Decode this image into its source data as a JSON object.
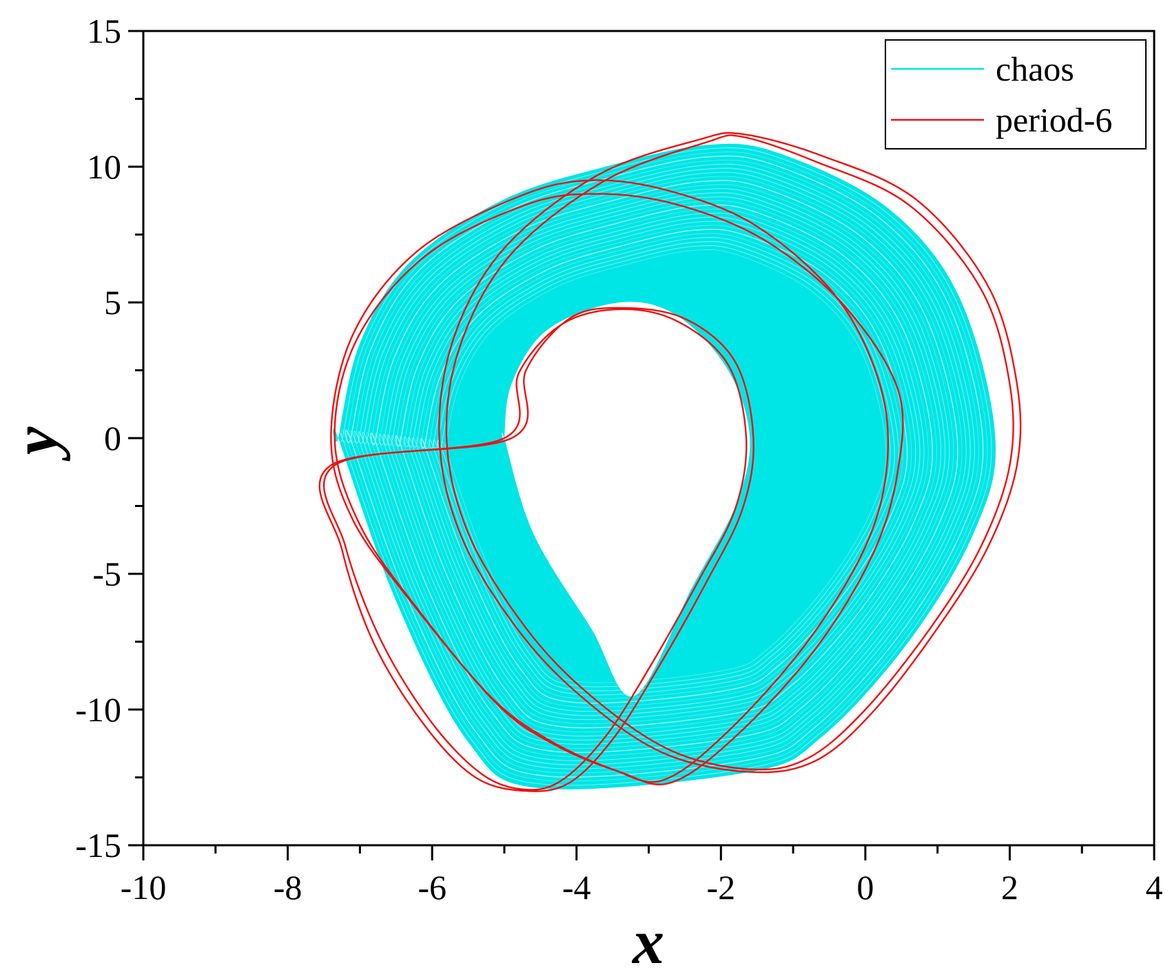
{
  "chart_data": {
    "type": "line",
    "title": "",
    "xlabel": "x",
    "ylabel": "y",
    "xlim": [
      -10,
      4
    ],
    "ylim": [
      -15,
      15
    ],
    "x_ticks": [
      -10,
      -8,
      -6,
      -4,
      -2,
      0,
      2,
      4
    ],
    "y_ticks": [
      15,
      10,
      5,
      0,
      -5,
      -10,
      -15
    ],
    "x_tick_labels": [
      "-10",
      "-8",
      "-6",
      "-4",
      "-2",
      "0",
      "2",
      "4"
    ],
    "y_tick_labels": [
      "15",
      "10",
      "5",
      "0",
      "-5",
      "-10",
      "-15"
    ],
    "grid": false,
    "legend_position": "top-right",
    "series": [
      {
        "name": "chaos",
        "color": "#00e5e5",
        "kind": "filled-band",
        "outer_boundary": [
          [
            -7.3,
            0
          ],
          [
            -7.0,
            3.5
          ],
          [
            -6.3,
            6.5
          ],
          [
            -5.0,
            8.8
          ],
          [
            -3.6,
            10.0
          ],
          [
            -2.2,
            10.8
          ],
          [
            -1.2,
            10.5
          ],
          [
            0.3,
            8.5
          ],
          [
            1.3,
            5.2
          ],
          [
            1.8,
            0
          ],
          [
            1.5,
            -3.5
          ],
          [
            0.6,
            -7.5
          ],
          [
            -0.6,
            -11.0
          ],
          [
            -1.6,
            -12.3
          ],
          [
            -4.5,
            -12.9
          ],
          [
            -5.5,
            -11.2
          ],
          [
            -6.5,
            -6.0
          ],
          [
            -7.3,
            0
          ]
        ],
        "inner_boundary": [
          [
            -5.0,
            0
          ],
          [
            -4.9,
            2.0
          ],
          [
            -4.4,
            4.0
          ],
          [
            -3.4,
            5.0
          ],
          [
            -2.6,
            4.5
          ],
          [
            -1.9,
            2.5
          ],
          [
            -1.6,
            0
          ],
          [
            -1.8,
            -2.5
          ],
          [
            -2.4,
            -5.5
          ],
          [
            -3.2,
            -9.5
          ],
          [
            -3.8,
            -7.0
          ],
          [
            -4.6,
            -3.5
          ],
          [
            -5.0,
            0
          ]
        ]
      },
      {
        "name": "period-6",
        "color": "#ee1111",
        "kind": "closed-loops",
        "loops": [
          [
            [
              -7.4,
              0
            ],
            [
              -7.1,
              3.8
            ],
            [
              -6.2,
              6.9
            ],
            [
              -4.8,
              8.9
            ],
            [
              -3.8,
              9.5
            ],
            [
              -2.7,
              9.1
            ],
            [
              -1.5,
              7.8
            ],
            [
              -0.4,
              5.2
            ],
            [
              0.2,
              2.0
            ],
            [
              0.3,
              -1.0
            ],
            [
              0.0,
              -4.0
            ],
            [
              -0.8,
              -7.5
            ],
            [
              -1.9,
              -10.8
            ],
            [
              -2.8,
              -12.6
            ],
            [
              -3.5,
              -12.2
            ],
            [
              -4.4,
              -11.1
            ],
            [
              -5.2,
              -9.5
            ],
            [
              -6.3,
              -6.0
            ],
            [
              -7.1,
              -3.0
            ]
          ],
          [
            [
              -7.35,
              0
            ],
            [
              -7.05,
              3.6
            ],
            [
              -6.1,
              6.7
            ],
            [
              -4.7,
              8.6
            ],
            [
              -3.7,
              9.0
            ],
            [
              -2.6,
              8.6
            ],
            [
              -1.4,
              7.3
            ],
            [
              -0.3,
              4.9
            ],
            [
              0.45,
              1.8
            ],
            [
              0.45,
              -1.2
            ],
            [
              0.1,
              -4.3
            ],
            [
              -0.7,
              -7.8
            ],
            [
              -1.8,
              -11.0
            ],
            [
              -2.7,
              -12.7
            ],
            [
              -3.4,
              -12.3
            ],
            [
              -4.3,
              -11.3
            ],
            [
              -5.1,
              -9.8
            ],
            [
              -6.2,
              -6.3
            ],
            [
              -7.0,
              -3.2
            ]
          ],
          [
            [
              -5.8,
              0
            ],
            [
              -5.6,
              3.5
            ],
            [
              -4.9,
              6.8
            ],
            [
              -3.6,
              9.5
            ],
            [
              -2.2,
              10.9
            ],
            [
              -1.7,
              11.1
            ],
            [
              -0.7,
              10.2
            ],
            [
              0.6,
              8.6
            ],
            [
              1.6,
              5.5
            ],
            [
              2.0,
              2.0
            ],
            [
              2.0,
              -1.0
            ],
            [
              1.6,
              -4.0
            ],
            [
              0.9,
              -7.0
            ],
            [
              0.0,
              -10.0
            ],
            [
              -0.8,
              -11.8
            ],
            [
              -1.6,
              -12.2
            ],
            [
              -2.7,
              -11.5
            ],
            [
              -3.8,
              -9.5
            ],
            [
              -4.7,
              -7.0
            ],
            [
              -5.5,
              -3.5
            ]
          ],
          [
            [
              -5.9,
              0
            ],
            [
              -5.7,
              3.7
            ],
            [
              -5.0,
              7.0
            ],
            [
              -3.7,
              9.7
            ],
            [
              -2.3,
              11.0
            ],
            [
              -1.7,
              11.2
            ],
            [
              -0.6,
              10.4
            ],
            [
              0.7,
              8.8
            ],
            [
              1.7,
              5.6
            ],
            [
              2.1,
              2.0
            ],
            [
              2.1,
              -1.0
            ],
            [
              1.7,
              -4.0
            ],
            [
              1.0,
              -7.0
            ],
            [
              0.1,
              -10.1
            ],
            [
              -0.7,
              -11.9
            ],
            [
              -1.6,
              -12.3
            ],
            [
              -2.8,
              -11.6
            ],
            [
              -3.9,
              -9.6
            ],
            [
              -4.8,
              -7.1
            ],
            [
              -5.6,
              -3.6
            ]
          ],
          [
            [
              -5.0,
              0
            ],
            [
              -4.8,
              2.4
            ],
            [
              -4.2,
              4.2
            ],
            [
              -3.4,
              4.75
            ],
            [
              -2.6,
              4.3
            ],
            [
              -1.9,
              2.7
            ],
            [
              -1.65,
              0
            ],
            [
              -1.8,
              -2.6
            ],
            [
              -2.3,
              -5.2
            ],
            [
              -3.0,
              -8.5
            ],
            [
              -3.6,
              -11.0
            ],
            [
              -4.2,
              -12.6
            ],
            [
              -4.7,
              -12.95
            ],
            [
              -5.3,
              -12.4
            ],
            [
              -6.0,
              -10.5
            ],
            [
              -6.7,
              -7.5
            ],
            [
              -7.2,
              -4.0
            ],
            [
              -7.35,
              -1.0
            ]
          ],
          [
            [
              -4.9,
              0
            ],
            [
              -4.7,
              2.5
            ],
            [
              -4.1,
              4.4
            ],
            [
              -3.4,
              4.8
            ],
            [
              -2.5,
              4.4
            ],
            [
              -1.8,
              2.8
            ],
            [
              -1.55,
              0
            ],
            [
              -1.7,
              -2.6
            ],
            [
              -2.2,
              -5.3
            ],
            [
              -2.9,
              -8.6
            ],
            [
              -3.5,
              -11.1
            ],
            [
              -4.1,
              -12.7
            ],
            [
              -4.7,
              -13.0
            ],
            [
              -5.4,
              -12.5
            ],
            [
              -6.1,
              -10.6
            ],
            [
              -6.8,
              -7.6
            ],
            [
              -7.25,
              -4.1
            ],
            [
              -7.4,
              -1.0
            ]
          ]
        ]
      }
    ]
  }
}
